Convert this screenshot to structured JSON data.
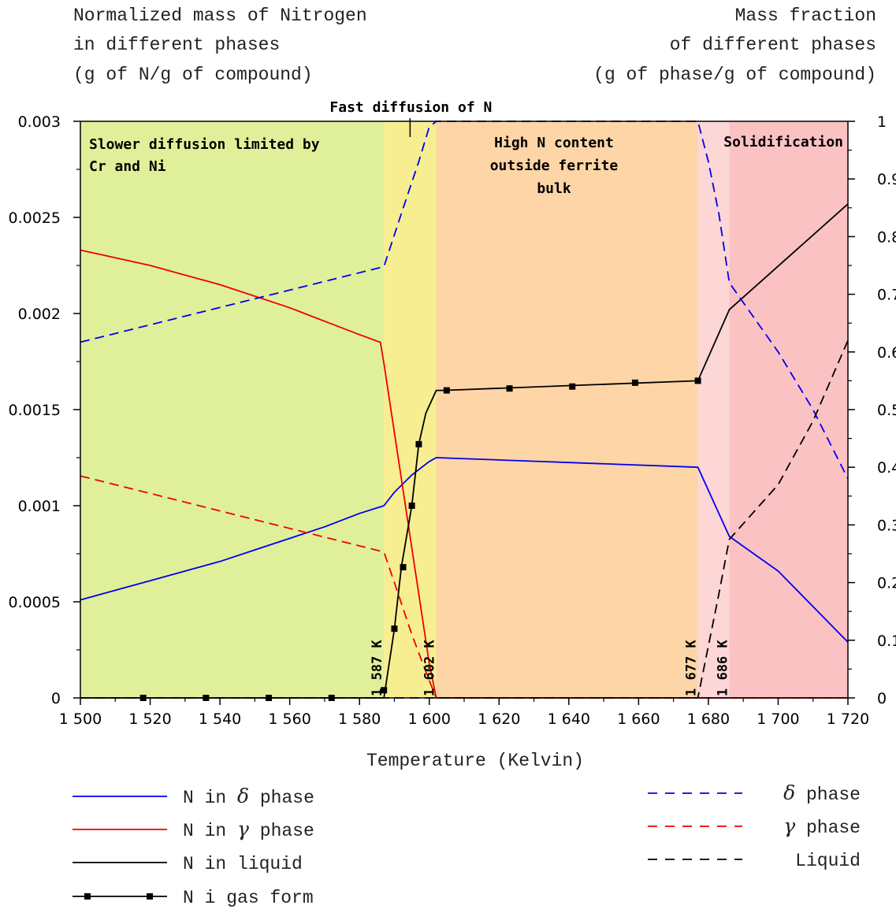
{
  "left_axis_title": [
    "Normalized mass of Nitrogen",
    "in different phases",
    "(g of N/g of compound)"
  ],
  "right_axis_title": [
    "Mass fraction",
    "of different phases",
    "(g of phase/g of compound)"
  ],
  "chart_data": {
    "type": "line",
    "xlabel": "Temperature (Kelvin)",
    "xlim": [
      1500,
      1720
    ],
    "ylim_left": [
      0,
      0.003
    ],
    "ylim_right": [
      0,
      1
    ],
    "x_ticks": [
      "1 500",
      "1 520",
      "1 540",
      "1 560",
      "1 580",
      "1 600",
      "1 620",
      "1 640",
      "1 660",
      "1 680",
      "1 700",
      "1 720"
    ],
    "y_left_ticks": [
      "0",
      "0.0005",
      "0.001",
      "0.0015",
      "0.002",
      "0.0025",
      "0.003"
    ],
    "y_right_ticks": [
      "0",
      "0.1",
      "0.2",
      "0.3",
      "0.4",
      "0.5",
      "0.6",
      "0.7",
      "0.8",
      "0.9",
      "1"
    ],
    "regions": [
      {
        "x0": 1500,
        "x1": 1587,
        "color": "#e0f09a",
        "label_lines": [
          "Slower diffusion limited by",
          "Cr and Ni"
        ]
      },
      {
        "x0": 1587,
        "x1": 1602,
        "color": "#f7ee92",
        "label_lines": []
      },
      {
        "x0": 1602,
        "x1": 1677,
        "color": "#fdd5a6",
        "label_lines": [
          "High N content",
          "outside ferrite",
          "bulk"
        ]
      },
      {
        "x0": 1677,
        "x1": 1686,
        "color": "#fdd6d6",
        "label_lines": []
      },
      {
        "x0": 1686,
        "x1": 1720,
        "color": "#fbc2c4",
        "label_lines": []
      }
    ],
    "top_annotation": {
      "text": "Fast diffusion of N",
      "x": 1594.5
    },
    "solidification_label": "Solidification",
    "vertical_labels": [
      {
        "x": 1587,
        "text": "1 587 K"
      },
      {
        "x": 1602,
        "text": "1 602 K"
      },
      {
        "x": 1677,
        "text": "1 677 K"
      },
      {
        "x": 1686,
        "text": "1 686 K"
      }
    ],
    "series": [
      {
        "name": "N in δ phase",
        "axis": "left",
        "color": "#0000ee",
        "dash": "solid",
        "x": [
          1500,
          1510,
          1520,
          1530,
          1540,
          1550,
          1560,
          1570,
          1580,
          1587,
          1590,
          1595,
          1600,
          1602,
          1677,
          1686,
          1700,
          1720
        ],
        "y": [
          0.00051,
          0.00056,
          0.00061,
          0.00066,
          0.00071,
          0.00077,
          0.00083,
          0.00089,
          0.00096,
          0.001,
          0.00107,
          0.00116,
          0.00123,
          0.00125,
          0.0012,
          0.00084,
          0.00066,
          0.00029
        ]
      },
      {
        "name": "N in γ phase",
        "axis": "left",
        "color": "#ee0000",
        "dash": "solid",
        "x": [
          1500,
          1510,
          1520,
          1530,
          1540,
          1550,
          1560,
          1570,
          1580,
          1586,
          1587,
          1590,
          1595,
          1600,
          1602,
          1720
        ],
        "y": [
          0.00233,
          0.00229,
          0.00225,
          0.0022,
          0.00215,
          0.00209,
          0.00203,
          0.00196,
          0.00189,
          0.00185,
          0.00174,
          0.00138,
          0.00078,
          0.00018,
          0,
          0
        ]
      },
      {
        "name": "N in liquid",
        "axis": "left",
        "color": "#000000",
        "dash": "solid",
        "x": [
          1500,
          1587,
          1590,
          1592,
          1595,
          1597,
          1599,
          1600,
          1602,
          1604,
          1677,
          1686,
          1720
        ],
        "y": [
          0,
          0,
          0.00036,
          0.00068,
          0.001,
          0.00132,
          0.00148,
          0.00152,
          0.0016,
          0.0016,
          0.00165,
          0.00202,
          0.00257
        ]
      },
      {
        "name": "N i gas form",
        "axis": "left",
        "color": "#000000",
        "dash": "solid",
        "markers": true,
        "x": [
          1518,
          1536,
          1554,
          1572,
          1587,
          1590,
          1592.5,
          1595,
          1597,
          1605,
          1623,
          1641,
          1659,
          1677
        ],
        "y": [
          0,
          0,
          0,
          0,
          4e-05,
          0.00036,
          0.00068,
          0.001,
          0.00132,
          0.0016,
          0.00161,
          0.00162,
          0.00164,
          0.00165
        ]
      },
      {
        "name": "δ phase",
        "axis": "right",
        "color": "#0000ee",
        "dash": "dashed",
        "x": [
          1500,
          1587,
          1592,
          1597,
          1600,
          1602,
          1677,
          1680,
          1683,
          1686,
          1700,
          1710,
          1720
        ],
        "y": [
          0.617,
          0.748,
          0.84,
          0.93,
          0.99,
          1.0,
          1.0,
          0.93,
          0.84,
          0.72,
          0.6,
          0.5,
          0.38
        ]
      },
      {
        "name": "γ phase",
        "axis": "right",
        "color": "#ee0000",
        "dash": "dashed",
        "x": [
          1500,
          1587,
          1590,
          1595,
          1600,
          1602,
          1720
        ],
        "y": [
          0.385,
          0.253,
          0.2,
          0.11,
          0.03,
          0,
          0
        ]
      },
      {
        "name": "Liquid",
        "axis": "right",
        "color": "#000000",
        "dash": "dashed",
        "x": [
          1500,
          1677,
          1680,
          1683,
          1686,
          1700,
          1710,
          1720
        ],
        "y": [
          0,
          0,
          0.09,
          0.18,
          0.275,
          0.37,
          0.48,
          0.62
        ]
      }
    ]
  },
  "legend_left": [
    {
      "prefix": "N in ",
      "greek": "δ",
      "suffix": " phase",
      "color": "#0000ee",
      "dash": "solid"
    },
    {
      "prefix": "N in ",
      "greek": "γ",
      "suffix": " phase",
      "color": "#ee0000",
      "dash": "solid"
    },
    {
      "prefix": "N in liquid",
      "greek": "",
      "suffix": "",
      "color": "#000000",
      "dash": "solid"
    },
    {
      "prefix": "N i gas form",
      "greek": "",
      "suffix": "",
      "color": "#000000",
      "dash": "marker"
    }
  ],
  "legend_right": [
    {
      "prefix": "",
      "greek": "δ",
      "suffix": " phase",
      "color": "#0000ee",
      "dash": "dashed"
    },
    {
      "prefix": "",
      "greek": "γ",
      "suffix": " phase",
      "color": "#ee0000",
      "dash": "dashed"
    },
    {
      "prefix": "Liquid",
      "greek": "",
      "suffix": "",
      "color": "#000000",
      "dash": "dashed"
    }
  ]
}
